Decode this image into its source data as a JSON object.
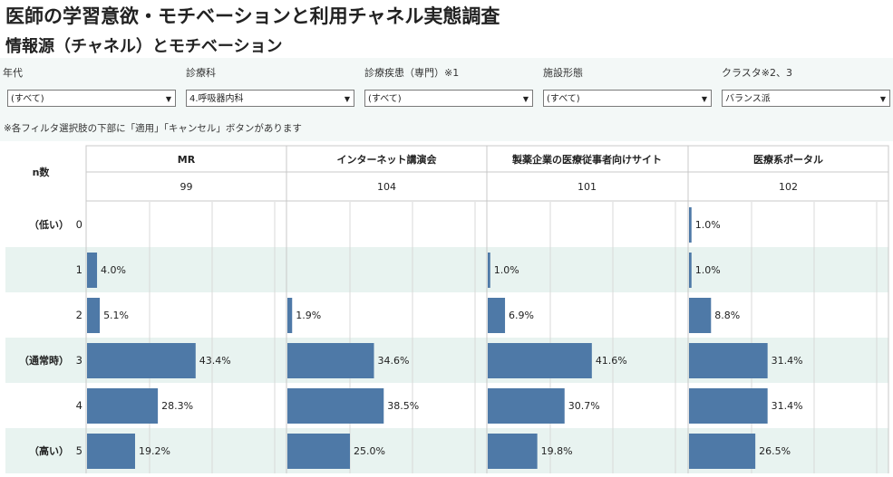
{
  "title": "医師の学習意欲・モチベーションと利用チャネル実態調査",
  "subtitle": "情報源（チャネル）とモチベーション",
  "filters": [
    {
      "label": "年代",
      "value": "(すべて)"
    },
    {
      "label": "診療科",
      "value": "4.呼吸器内科"
    },
    {
      "label": "診療疾患（専門）※1",
      "value": "(すべて)"
    },
    {
      "label": "施設形態",
      "value": "(すべて)"
    },
    {
      "label": "クラスタ※2、3",
      "value": "バランス派"
    }
  ],
  "note": "※各フィルタ選択肢の下部に「適用」「キャンセル」ボタンがあります",
  "colors": {
    "bar": "#4e79a7",
    "band": "#e8f3f0",
    "grid": "#d9d9d9",
    "border": "#c8c8c8"
  },
  "chart_data": {
    "type": "bar",
    "orientation": "horizontal",
    "n_label": "n数",
    "categories": [
      "0",
      "1",
      "2",
      "3",
      "4",
      "5"
    ],
    "category_prefixes": [
      "（低い）",
      "",
      "",
      "（通常時）",
      "",
      "（高い）"
    ],
    "panels": [
      {
        "name": "MR",
        "n": "99",
        "values": [
          null,
          4.0,
          5.1,
          43.4,
          28.3,
          19.2
        ]
      },
      {
        "name": "インターネット講演会",
        "n": "104",
        "values": [
          null,
          null,
          1.9,
          34.6,
          38.5,
          25.0
        ]
      },
      {
        "name": "製薬企業の医療従事者向けサイト",
        "n": "101",
        "values": [
          null,
          1.0,
          6.9,
          41.6,
          30.7,
          19.8
        ]
      },
      {
        "name": "医療系ポータル",
        "n": "102",
        "values": [
          1.0,
          1.0,
          8.8,
          31.4,
          31.4,
          26.5
        ]
      }
    ],
    "value_suffix": "%",
    "xlim": [
      0,
      100
    ]
  }
}
